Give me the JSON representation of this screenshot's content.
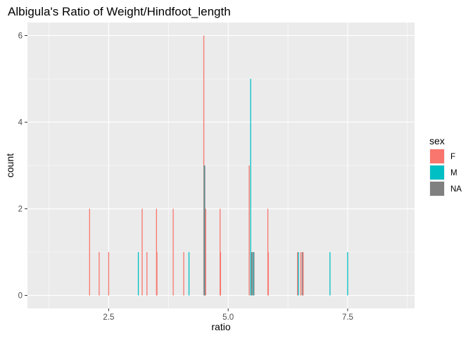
{
  "chart_data": {
    "type": "bar",
    "subtype": "histogram",
    "title": "Albigula's Ratio of Weight/Hindfoot_length",
    "xlabel": "ratio",
    "ylabel": "count",
    "xlim": [
      0.8,
      8.9
    ],
    "ylim": [
      -0.3,
      6.3
    ],
    "x_ticks": [
      2.5,
      5.0,
      7.5
    ],
    "x_tick_labels": [
      "2.5",
      "5.0",
      "7.5"
    ],
    "y_ticks": [
      0,
      2,
      4,
      6
    ],
    "y_tick_labels": [
      "0",
      "2",
      "4",
      "6"
    ],
    "grid": true,
    "legend": {
      "title": "sex",
      "position": "right"
    },
    "series": [
      {
        "name": "F",
        "color": "#F8766D",
        "points": [
          {
            "x": 2.1,
            "y": 2
          },
          {
            "x": 2.3,
            "y": 1
          },
          {
            "x": 2.5,
            "y": 1
          },
          {
            "x": 3.2,
            "y": 2
          },
          {
            "x": 3.3,
            "y": 1
          },
          {
            "x": 3.5,
            "y": 2
          },
          {
            "x": 3.51,
            "y": 1
          },
          {
            "x": 3.85,
            "y": 2
          },
          {
            "x": 4.07,
            "y": 1
          },
          {
            "x": 4.49,
            "y": 6
          },
          {
            "x": 4.53,
            "y": 2
          },
          {
            "x": 4.83,
            "y": 2
          },
          {
            "x": 4.84,
            "y": 1
          },
          {
            "x": 5.44,
            "y": 3
          },
          {
            "x": 5.5,
            "y": 1
          },
          {
            "x": 5.83,
            "y": 2
          },
          {
            "x": 5.84,
            "y": 1
          },
          {
            "x": 6.45,
            "y": 1
          },
          {
            "x": 6.52,
            "y": 1
          },
          {
            "x": 6.57,
            "y": 1
          }
        ]
      },
      {
        "name": "M",
        "color": "#00BFC4",
        "points": [
          {
            "x": 3.12,
            "y": 1
          },
          {
            "x": 4.18,
            "y": 1
          },
          {
            "x": 4.5,
            "y": 3
          },
          {
            "x": 5.47,
            "y": 5
          },
          {
            "x": 5.52,
            "y": 1
          },
          {
            "x": 6.47,
            "y": 1
          },
          {
            "x": 7.13,
            "y": 1
          },
          {
            "x": 7.5,
            "y": 1
          }
        ]
      },
      {
        "name": "NA",
        "color": "#808080",
        "points": [
          {
            "x": 4.51,
            "y": 3
          },
          {
            "x": 5.49,
            "y": 1
          },
          {
            "x": 5.54,
            "y": 1
          },
          {
            "x": 6.55,
            "y": 1
          }
        ]
      }
    ]
  }
}
